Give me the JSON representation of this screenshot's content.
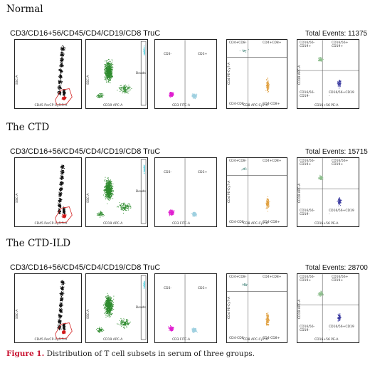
{
  "groups": [
    {
      "title": "Normal",
      "panel_title": "CD3/CD16+56/CD45/CD4/CD19/CD8 TruC",
      "total_events": "Total Events: 11375",
      "plots": [
        {
          "xlabel": "CD45 PerCP-Cy5.5-A",
          "ylabel": "SSC-A"
        },
        {
          "xlabel": "CD19 APC-A",
          "ylabel": "SSC-A",
          "gate": "Beads"
        },
        {
          "xlabel": "CD3 FITC-A",
          "ylabel": "",
          "q_left": "CD3-",
          "q_right": "CD3+"
        },
        {
          "xlabel": "CD8 APC-Cy7-A",
          "ylabel": "CD4 PE-Cy7-A",
          "q": [
            "CD4+CD8-",
            "CD4+CD8+",
            "CD4-CD8-",
            "CD4-CD8+"
          ]
        },
        {
          "xlabel": "CD16+56 PE-A",
          "ylabel": "CD19 APC-A",
          "q": [
            "CD16/56-\nCD19+",
            "CD16/56+\nCD19+",
            "CD16/56-\nCD19-",
            "CD16/56+CD19\n-"
          ]
        }
      ]
    },
    {
      "title": "The CTD",
      "panel_title": "CD3/CD16+56/CD45/CD4/CD19/CD8 TruC",
      "total_events": "Total Events: 15715",
      "plots": [
        {
          "xlabel": "CD45 PerCP-Cy5.5-A",
          "ylabel": "SSC-A"
        },
        {
          "xlabel": "CD19 APC-A",
          "ylabel": "SSC-A",
          "gate": "Beads"
        },
        {
          "xlabel": "CD3 FITC-A",
          "ylabel": "",
          "q_left": "CD3-",
          "q_right": "CD3+"
        },
        {
          "xlabel": "CD8 APC-Cy7-A",
          "ylabel": "CD4 PE-Cy7-A",
          "q": [
            "CD4+CD8-",
            "CD4+CD8+",
            "CD4-CD8-",
            "CD4-CD8+"
          ]
        },
        {
          "xlabel": "CD16+56 PE-A",
          "ylabel": "CD19 APC-A",
          "q": [
            "CD16/56-\nCD19+",
            "CD16/56+\nCD19+",
            "CD16/56-\nCD19-",
            "CD16/56+CD19\n-"
          ]
        }
      ]
    },
    {
      "title": "The CTD-ILD",
      "panel_title": "CD3/CD16+56/CD45/CD4/CD19/CD8 TruC",
      "total_events": "Total Events: 28700",
      "plots": [
        {
          "xlabel": "CD45 PerCP-Cy5.5-A",
          "ylabel": "SSC-A"
        },
        {
          "xlabel": "CD19 APC-A",
          "ylabel": "SSC-A",
          "gate": "Beads"
        },
        {
          "xlabel": "CD3 FITC-A",
          "ylabel": "",
          "q_left": "CD3-",
          "q_right": "CD3+"
        },
        {
          "xlabel": "CD8 APC-Cy7-A",
          "ylabel": "CD4 PE-Cy7-A",
          "q": [
            "CD4+CD8-",
            "CD4+CD8+",
            "CD4-CD8-",
            "CD4-CD8+"
          ]
        },
        {
          "xlabel": "CD16+56 PE-A",
          "ylabel": "CD19 APC-A",
          "q": [
            "CD16/56-\nCD19+",
            "CD16/56+\nCD19+",
            "CD16/56-\nCD19-",
            "CD16/56+CD19\n-"
          ]
        }
      ]
    }
  ],
  "caption": {
    "figure_label": "Figure 1.",
    "text": "Distribution of T cell subsets in serum of three groups."
  },
  "colors": {
    "black_dots": "#111111",
    "red_gate": "#d11a1a",
    "green_dots": "#2e8b2e",
    "cyan_beads": "#39c6d8",
    "magenta_dots": "#e020d0",
    "lightblue_dots": "#9fd0e0",
    "orange_dots": "#e0a040",
    "teal_dots": "#7aa8a0",
    "lightgreen_dots": "#8fbf8f",
    "navy_dots": "#3a3aa0",
    "caption_red": "#c8102e"
  }
}
